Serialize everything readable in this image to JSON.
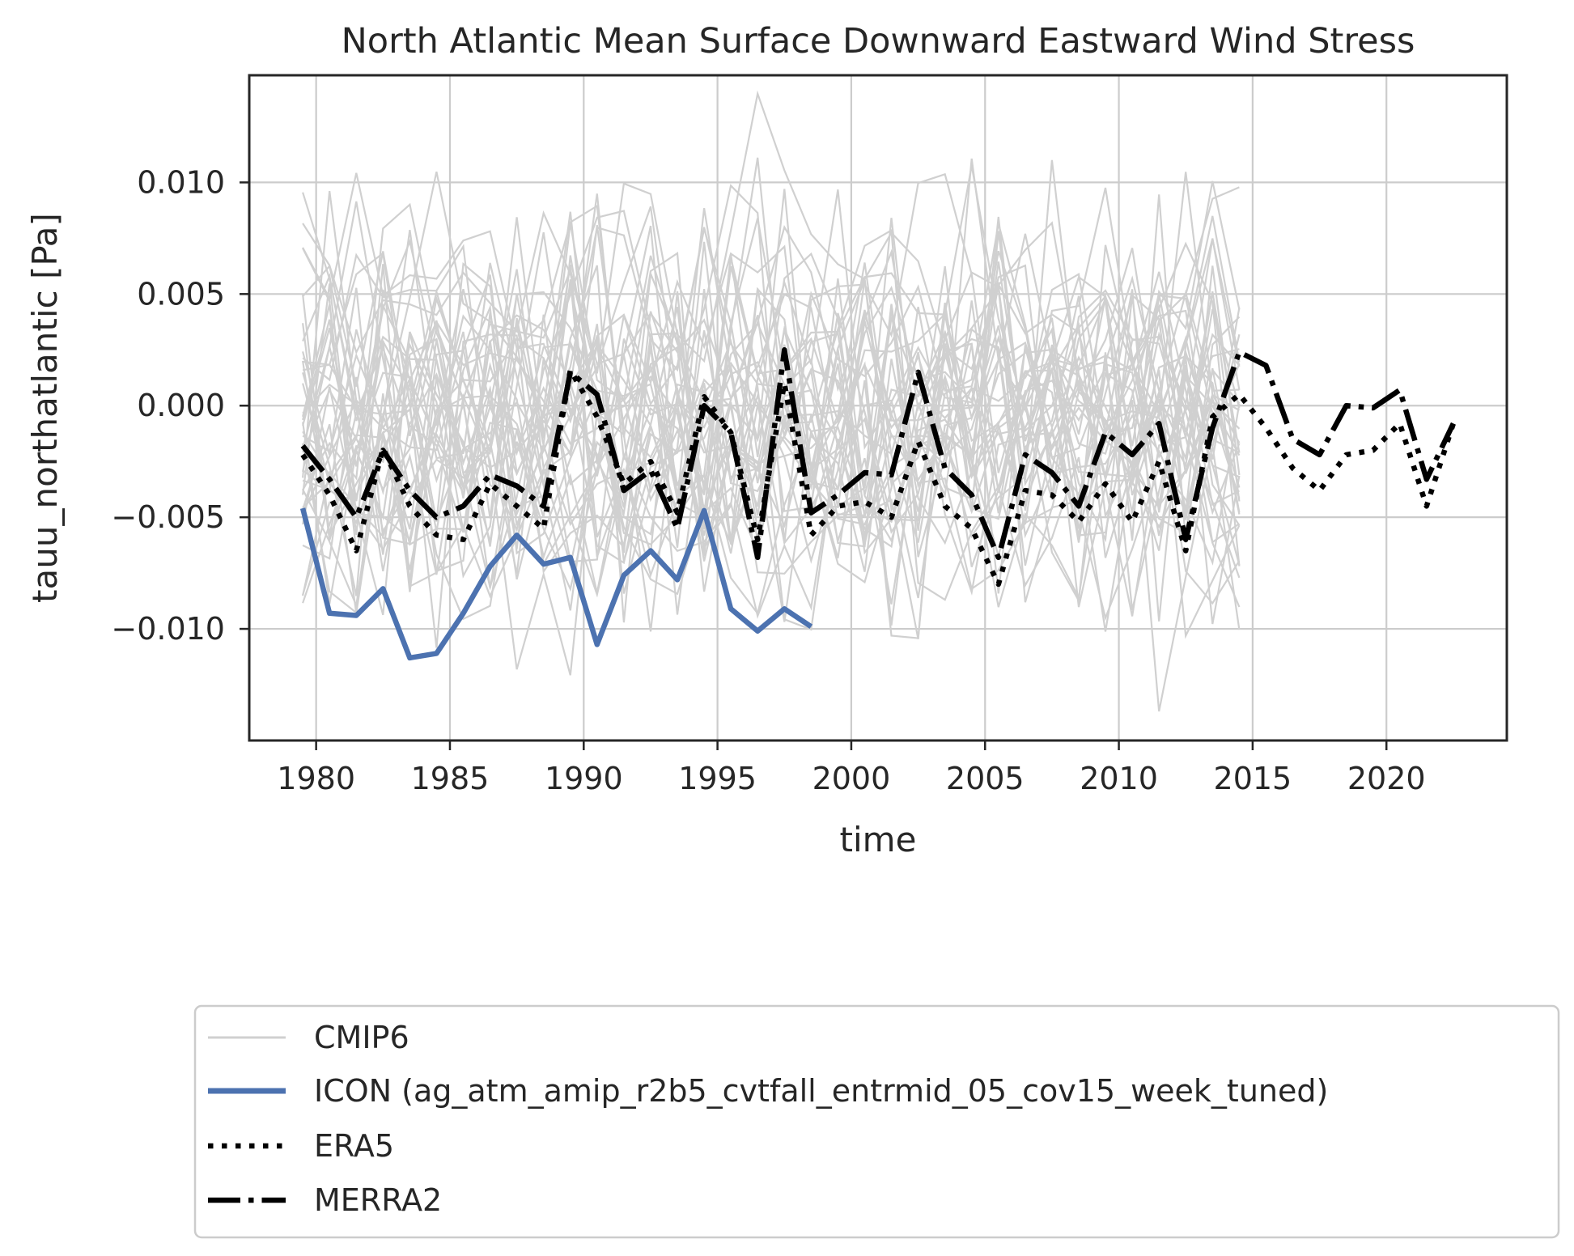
{
  "chart_data": {
    "type": "line",
    "title": "North Atlantic Mean Surface Downward Eastward Wind Stress",
    "xlabel": "time",
    "ylabel": "tauu_northatlantic [Pa]",
    "xlim": [
      1977.5,
      2024.5
    ],
    "ylim": [
      -0.015,
      0.0148
    ],
    "xticks": [
      1980,
      1985,
      1990,
      1995,
      2000,
      2005,
      2010,
      2015,
      2020
    ],
    "xtick_labels": [
      "1980",
      "1985",
      "1990",
      "1995",
      "2000",
      "2005",
      "2010",
      "2015",
      "2020"
    ],
    "yticks": [
      -0.01,
      -0.005,
      0.0,
      0.005,
      0.01
    ],
    "ytick_labels": [
      "−0.010",
      "−0.005",
      "0.000",
      "0.005",
      "0.010"
    ],
    "grid": true,
    "legend_position": "below chart",
    "colors": {
      "cmip6": "#d0d0d0",
      "icon": "#4c72b0",
      "era5": "#000000",
      "merra2": "#000000",
      "grid": "#cccccc",
      "axes": "#262626"
    },
    "cmip6_ensemble": {
      "name": "CMIP6",
      "x_start": 1979.5,
      "x_end": 2014.5,
      "members_shown": 40,
      "mean": -0.0005,
      "spread_std": 0.0048
    },
    "series": [
      {
        "name": "ICON (ag_atm_amip_r2b5_cvtfall_entrmid_05_cov15_week_tuned)",
        "style": "solid",
        "x": [
          1979.5,
          1980.5,
          1981.5,
          1982.5,
          1983.5,
          1984.5,
          1985.5,
          1986.5,
          1987.5,
          1988.5,
          1989.5,
          1990.5,
          1991.5,
          1992.5,
          1993.5,
          1994.5,
          1995.5,
          1996.5,
          1997.5,
          1998.5
        ],
        "y": [
          -0.0046,
          -0.0093,
          -0.0094,
          -0.0082,
          -0.0113,
          -0.0111,
          -0.0093,
          -0.0072,
          -0.0058,
          -0.0071,
          -0.0068,
          -0.0107,
          -0.0076,
          -0.0065,
          -0.0078,
          -0.0047,
          -0.0091,
          -0.0101,
          -0.0091,
          -0.0099
        ]
      },
      {
        "name": "ERA5",
        "style": "dotted",
        "x": [
          1979.5,
          1980.5,
          1981.5,
          1982.5,
          1983.5,
          1984.5,
          1985.5,
          1986.5,
          1987.5,
          1988.5,
          1989.5,
          1990.5,
          1991.5,
          1992.5,
          1993.5,
          1994.5,
          1995.5,
          1996.5,
          1997.5,
          1998.5,
          1999.5,
          2000.5,
          2001.5,
          2002.5,
          2003.5,
          2004.5,
          2005.5,
          2006.5,
          2007.5,
          2008.5,
          2009.5,
          2010.5,
          2011.5,
          2012.5,
          2013.5,
          2014.5,
          2015.5,
          2016.5,
          2017.5,
          2018.5,
          2019.5,
          2020.5,
          2021.5,
          2022.5
        ],
        "y": [
          -0.0022,
          -0.004,
          -0.0065,
          -0.0019,
          -0.0045,
          -0.0058,
          -0.006,
          -0.0035,
          -0.0045,
          -0.0055,
          0.0016,
          -0.0005,
          -0.0035,
          -0.0025,
          -0.0048,
          0.0004,
          -0.0012,
          -0.006,
          0.001,
          -0.0058,
          -0.0045,
          -0.0043,
          -0.005,
          -0.0016,
          -0.0045,
          -0.0055,
          -0.008,
          -0.0038,
          -0.004,
          -0.0052,
          -0.0035,
          -0.0052,
          -0.0025,
          -0.0065,
          -0.0005,
          0.0005,
          -0.001,
          -0.0028,
          -0.0038,
          -0.0022,
          -0.002,
          -0.0008,
          -0.0045,
          -0.0008
        ]
      },
      {
        "name": "MERRA2",
        "style": "dashdot",
        "x": [
          1979.5,
          1980.5,
          1981.5,
          1982.5,
          1983.5,
          1984.5,
          1985.5,
          1986.5,
          1987.5,
          1988.5,
          1989.5,
          1990.5,
          1991.5,
          1992.5,
          1993.5,
          1994.5,
          1995.5,
          1996.5,
          1997.5,
          1998.5,
          1999.5,
          2000.5,
          2001.5,
          2002.5,
          2003.5,
          2004.5,
          2005.5,
          2006.5,
          2007.5,
          2008.5,
          2009.5,
          2010.5,
          2011.5,
          2012.5,
          2013.5,
          2014.5,
          2015.5,
          2016.5,
          2017.5,
          2018.5,
          2019.5,
          2020.5,
          2021.5,
          2022.5
        ],
        "y": [
          -0.0018,
          -0.0033,
          -0.005,
          -0.002,
          -0.0038,
          -0.005,
          -0.0045,
          -0.0031,
          -0.0036,
          -0.0045,
          0.0015,
          0.0005,
          -0.0038,
          -0.0029,
          -0.0055,
          0.0,
          -0.0012,
          -0.0068,
          0.0025,
          -0.0048,
          -0.004,
          -0.003,
          -0.0031,
          0.0015,
          -0.0028,
          -0.004,
          -0.0068,
          -0.0022,
          -0.003,
          -0.0045,
          -0.0012,
          -0.0022,
          -0.0008,
          -0.006,
          -0.001,
          0.0024,
          0.0018,
          -0.0015,
          -0.0022,
          0.0,
          -0.0001,
          0.0007,
          -0.0033,
          -0.0008
        ]
      }
    ],
    "legend": [
      {
        "label": "CMIP6",
        "style": "thin-light"
      },
      {
        "label": "ICON (ag_atm_amip_r2b5_cvtfall_entrmid_05_cov15_week_tuned)",
        "style": "solid-blue"
      },
      {
        "label": "ERA5",
        "style": "dotted"
      },
      {
        "label": "MERRA2",
        "style": "dashdot"
      }
    ]
  }
}
